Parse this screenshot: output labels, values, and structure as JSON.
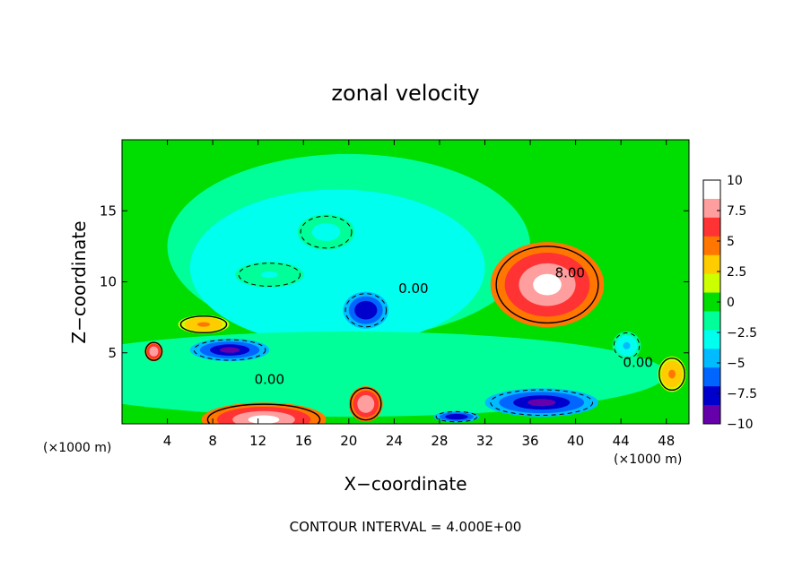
{
  "chart_data": {
    "type": "heatmap",
    "title": "zonal velocity",
    "xlabel": "X−coordinate",
    "ylabel": "Z−coordinate",
    "x_unit_left": "(×1000 m)",
    "x_unit_right": "(×1000 m)",
    "xlim": [
      0,
      50
    ],
    "ylim": [
      0,
      20
    ],
    "x_ticks": [
      4,
      8,
      12,
      16,
      20,
      24,
      28,
      32,
      36,
      40,
      44,
      48
    ],
    "x_tick_labels": [
      "4",
      "8",
      "12",
      "16",
      "20",
      "24",
      "28",
      "32",
      "36",
      "40",
      "44",
      "48"
    ],
    "y_ticks": [
      5,
      10,
      15
    ],
    "y_tick_labels": [
      "5",
      "10",
      "15"
    ],
    "footer": "CONTOUR INTERVAL = 4.000E+00",
    "contour_interval": 4,
    "contour_labels": [
      {
        "text": "8.00",
        "x": 39.5,
        "y": 10.3
      },
      {
        "text": "0.00",
        "x": 25.7,
        "y": 9.2
      },
      {
        "text": "0.00",
        "x": 13.0,
        "y": 2.8
      },
      {
        "text": "0.00",
        "x": 45.5,
        "y": 4.0
      }
    ],
    "colorbar": {
      "range": [
        -10,
        10
      ],
      "ticks": [
        10,
        7.5,
        5,
        2.5,
        0,
        -2.5,
        -5,
        -7.5,
        -10
      ],
      "tick_labels": [
        "10",
        "7.5",
        "5",
        "2.5",
        "0",
        "−2.5",
        "−5",
        "−7.5",
        "−10"
      ],
      "colors": [
        "#ffffff",
        "#ff9e9e",
        "#ff3333",
        "#ff7700",
        "#ffcc00",
        "#ccff00",
        "#00dd00",
        "#00ff99",
        "#00ffee",
        "#00bbff",
        "#0066ff",
        "#0000cc",
        "#6600aa"
      ]
    },
    "features": [
      {
        "kind": "jet",
        "name": "upper-right-maximum",
        "x": 37.5,
        "y": 9.8,
        "value": 11
      },
      {
        "kind": "jet",
        "name": "surface-maximum",
        "x": 12.5,
        "y": 0.3,
        "value": 11
      },
      {
        "kind": "jet",
        "name": "surface-max-2",
        "x": 21.5,
        "y": 1.4,
        "value": 10
      },
      {
        "kind": "jet",
        "name": "left-max",
        "x": 2.8,
        "y": 5.1,
        "value": 10
      },
      {
        "kind": "jet",
        "name": "upper-left-warm",
        "x": 7.2,
        "y": 7.0,
        "value": 5
      },
      {
        "kind": "jet",
        "name": "right-warm",
        "x": 48.5,
        "y": 3.5,
        "value": 5
      },
      {
        "kind": "jet",
        "name": "left-neg",
        "x": 9.5,
        "y": 5.2,
        "value": -11
      },
      {
        "kind": "jet",
        "name": "center-neg",
        "x": 21.5,
        "y": 8.0,
        "value": -10
      },
      {
        "kind": "jet",
        "name": "bottom-neg-a",
        "x": 37.0,
        "y": 1.5,
        "value": -11
      },
      {
        "kind": "jet",
        "name": "bottom-neg-b",
        "x": 29.5,
        "y": 0.5,
        "value": -10
      },
      {
        "kind": "jet",
        "name": "upper-cyan",
        "x": 18.0,
        "y": 13.5,
        "value": -4
      },
      {
        "kind": "jet",
        "name": "cyan-10",
        "x": 13.0,
        "y": 10.5,
        "value": -3
      },
      {
        "kind": "jet",
        "name": "right-neg",
        "x": 44.5,
        "y": 5.5,
        "value": -5
      }
    ]
  }
}
